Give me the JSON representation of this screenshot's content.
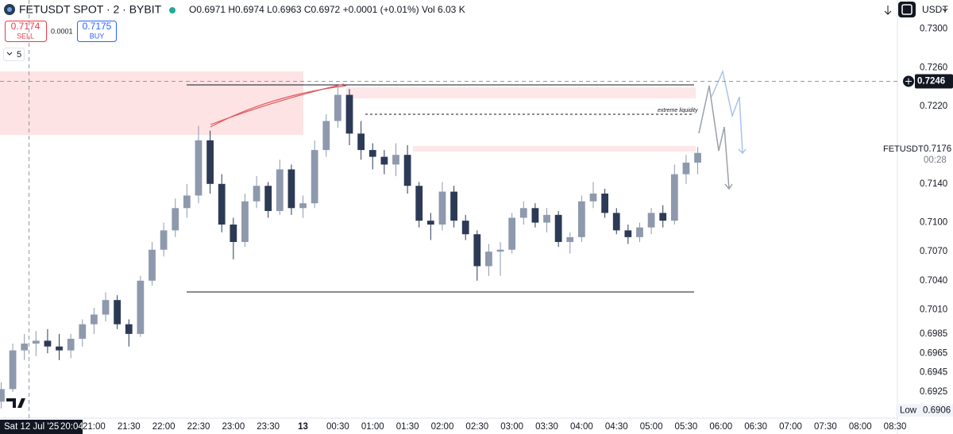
{
  "chart_data": {
    "type": "candlestick",
    "title": "FETUSDT SPOT · 2 · BYBIT",
    "x": [
      "19:40",
      "19:50",
      "20:00",
      "20:10",
      "20:20",
      "20:30",
      "20:40",
      "20:50",
      "21:00",
      "21:10",
      "21:20",
      "21:30",
      "21:40",
      "21:50",
      "22:00",
      "22:10",
      "22:20",
      "22:30",
      "22:40",
      "22:50",
      "23:00",
      "23:10",
      "23:20",
      "23:30",
      "23:40",
      "23:50",
      "00:00",
      "00:10",
      "00:20",
      "00:30",
      "00:40",
      "00:50",
      "01:00",
      "01:10",
      "01:20",
      "01:30",
      "01:40",
      "01:50",
      "02:00",
      "02:10",
      "02:20",
      "02:30",
      "02:40",
      "02:50",
      "03:00",
      "03:10",
      "03:20",
      "03:30",
      "03:40",
      "03:50",
      "04:00",
      "04:10",
      "04:20",
      "04:30",
      "04:40",
      "04:50",
      "05:00",
      "05:10",
      "05:20",
      "05:30",
      "05:40"
    ],
    "open": [
      0.6915,
      0.6928,
      0.6968,
      0.6975,
      0.6978,
      0.6972,
      0.6968,
      0.698,
      0.6995,
      0.7005,
      0.702,
      0.6995,
      0.6985,
      0.704,
      0.7072,
      0.7092,
      0.7115,
      0.7128,
      0.7185,
      0.714,
      0.7098,
      0.708,
      0.7122,
      0.7138,
      0.7112,
      0.7155,
      0.7115,
      0.712,
      0.7175,
      0.7205,
      0.7232,
      0.7192,
      0.7175,
      0.7168,
      0.716,
      0.717,
      0.7138,
      0.7102,
      0.7098,
      0.7132,
      0.7102,
      0.7088,
      0.7055,
      0.707,
      0.7072,
      0.7105,
      0.7115,
      0.71,
      0.7108,
      0.708,
      0.7085,
      0.7122,
      0.713,
      0.711,
      0.7092,
      0.7085,
      0.7095,
      0.711,
      0.7102,
      0.715,
      0.7162
    ],
    "high": [
      0.6935,
      0.6975,
      0.6985,
      0.6988,
      0.699,
      0.6985,
      0.6985,
      0.7,
      0.7012,
      0.7028,
      0.7025,
      0.7,
      0.7045,
      0.708,
      0.71,
      0.7125,
      0.714,
      0.72,
      0.7195,
      0.715,
      0.7105,
      0.713,
      0.7148,
      0.7142,
      0.7165,
      0.716,
      0.7128,
      0.7185,
      0.7212,
      0.7242,
      0.7238,
      0.7205,
      0.7182,
      0.7175,
      0.7182,
      0.718,
      0.7142,
      0.711,
      0.7142,
      0.7138,
      0.7108,
      0.7092,
      0.7078,
      0.708,
      0.711,
      0.7122,
      0.712,
      0.7115,
      0.7112,
      0.709,
      0.7128,
      0.7142,
      0.7135,
      0.7115,
      0.7098,
      0.71,
      0.7115,
      0.7118,
      0.716,
      0.717,
      0.7178
    ],
    "low": [
      0.6908,
      0.6925,
      0.6958,
      0.6962,
      0.6965,
      0.6958,
      0.696,
      0.6972,
      0.6985,
      0.6998,
      0.699,
      0.6972,
      0.6982,
      0.7035,
      0.7065,
      0.7085,
      0.7105,
      0.712,
      0.713,
      0.709,
      0.7062,
      0.7075,
      0.7115,
      0.7105,
      0.7108,
      0.7108,
      0.7105,
      0.7115,
      0.7168,
      0.7198,
      0.718,
      0.7165,
      0.7155,
      0.715,
      0.7148,
      0.713,
      0.7095,
      0.7082,
      0.7092,
      0.7095,
      0.7082,
      0.704,
      0.7045,
      0.7045,
      0.7068,
      0.7098,
      0.7095,
      0.709,
      0.7075,
      0.7068,
      0.708,
      0.7115,
      0.7105,
      0.7088,
      0.7078,
      0.708,
      0.7088,
      0.7095,
      0.7098,
      0.714,
      0.715
    ],
    "close": [
      0.6928,
      0.6968,
      0.6975,
      0.6978,
      0.6972,
      0.6968,
      0.698,
      0.6995,
      0.7005,
      0.702,
      0.6995,
      0.6985,
      0.704,
      0.7072,
      0.7092,
      0.7115,
      0.7128,
      0.7185,
      0.714,
      0.7098,
      0.708,
      0.7122,
      0.7138,
      0.7112,
      0.7155,
      0.7115,
      0.712,
      0.7175,
      0.7205,
      0.7232,
      0.7192,
      0.7175,
      0.7168,
      0.716,
      0.717,
      0.7138,
      0.7102,
      0.7098,
      0.7132,
      0.7102,
      0.7088,
      0.7055,
      0.707,
      0.7072,
      0.7105,
      0.7115,
      0.71,
      0.7108,
      0.708,
      0.7085,
      0.7122,
      0.713,
      0.711,
      0.7092,
      0.7085,
      0.7095,
      0.711,
      0.7102,
      0.715,
      0.7162,
      0.7172
    ],
    "up_color": "#8e99ad",
    "down_color": "#2c3a56",
    "ylim": [
      0.6898,
      0.733
    ],
    "yticks": [
      {
        "value": 0.73,
        "label": "0.7300"
      },
      {
        "value": 0.726,
        "label": "0.7260"
      },
      {
        "value": 0.722,
        "label": "0.7220"
      },
      {
        "value": 0.714,
        "label": "0.7140"
      },
      {
        "value": 0.71,
        "label": "0.7100"
      },
      {
        "value": 0.707,
        "label": "0.7070"
      },
      {
        "value": 0.704,
        "label": "0.7040"
      },
      {
        "value": 0.701,
        "label": "0.7010"
      },
      {
        "value": 0.6985,
        "label": "0.6985"
      },
      {
        "value": 0.6965,
        "label": "0.6965"
      },
      {
        "value": 0.6945,
        "label": "0.6945"
      },
      {
        "value": 0.6925,
        "label": "0.6925"
      }
    ],
    "xlim": [
      "19:39",
      "08:32"
    ],
    "xticks": [
      "21:00",
      "21:30",
      "22:00",
      "22:30",
      "23:00",
      "23:30",
      {
        "value": "00:00",
        "label": "13"
      },
      "00:30",
      "01:00",
      "01:30",
      "02:00",
      "02:30",
      "03:00",
      "03:30",
      "04:00",
      "04:30",
      "05:00",
      "05:30",
      "06:00",
      "06:30",
      "07:00",
      "07:30",
      "08:00",
      "08:30"
    ],
    "grid": false,
    "annotations": [
      {
        "text": "extreme liquidity"
      }
    ],
    "last_price": {
      "symbol": "FETUSDT",
      "value": 0.7176,
      "label": "0.7176",
      "countdown": "00:28"
    },
    "low_marker": {
      "text": "Low",
      "value": 0.6906,
      "label": "0.6906"
    },
    "crosshair": {
      "price": {
        "value": 0.7246,
        "label": "0.7246"
      },
      "date": "Sat 12 Jul '25",
      "time": "20:04"
    }
  },
  "ui": {
    "legend": {
      "open": "O0.6971",
      "high": "H0.6974",
      "low": "L0.6963",
      "close": "C0.6972",
      "change": "+0.0001 (+0.01%)",
      "volume": "Vol 6.03 K"
    },
    "sell": {
      "price": "0.7174",
      "label": "SELL"
    },
    "spread": "0.0001",
    "buy": {
      "price": "0.7175",
      "label": "BUY"
    },
    "indicators": "5",
    "currency": "USDT"
  }
}
